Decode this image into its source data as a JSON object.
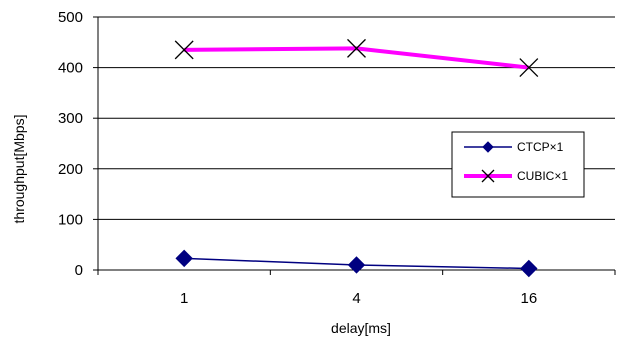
{
  "chart_data": {
    "type": "line",
    "xlabel": "delay[ms]",
    "ylabel": "throughput[Mbps]",
    "categories": [
      "1",
      "4",
      "16"
    ],
    "ylim": [
      0,
      500
    ],
    "yticks": [
      0,
      100,
      200,
      300,
      400,
      500
    ],
    "grid": "horizontal",
    "legend": "right",
    "series": [
      {
        "name": "CTCP×1",
        "values": [
          23,
          10,
          3
        ],
        "color": "#000080",
        "marker": "diamond"
      },
      {
        "name": "CUBIC×1",
        "values": [
          435,
          438,
          400
        ],
        "color": "#ff00ff",
        "marker": "x"
      }
    ]
  }
}
